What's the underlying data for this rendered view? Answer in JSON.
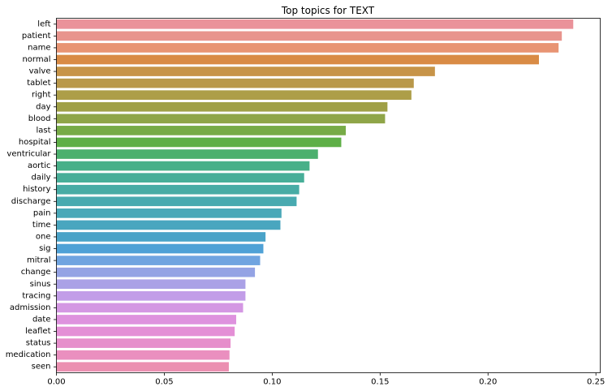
{
  "chart_data": {
    "type": "bar",
    "orientation": "horizontal",
    "title": "Top topics for TEXT",
    "xlabel": "",
    "ylabel": "",
    "xlim": [
      0,
      0.252
    ],
    "x_ticks": [
      0.0,
      0.05,
      0.1,
      0.15,
      0.2,
      0.25
    ],
    "x_tick_labels": [
      "0.00",
      "0.05",
      "0.10",
      "0.15",
      "0.20",
      "0.25"
    ],
    "grid": false,
    "categories": [
      "left",
      "patient",
      "name",
      "normal",
      "valve",
      "tablet",
      "right",
      "day",
      "blood",
      "last",
      "hospital",
      "ventricular",
      "aortic",
      "daily",
      "history",
      "discharge",
      "pain",
      "time",
      "one",
      "sig",
      "mitral",
      "change",
      "sinus",
      "tracing",
      "admission",
      "date",
      "leaflet",
      "status",
      "medication",
      "seen"
    ],
    "values": [
      0.2395,
      0.2342,
      0.2327,
      0.2236,
      0.1754,
      0.1656,
      0.1645,
      0.1534,
      0.1523,
      0.1341,
      0.132,
      0.1212,
      0.1173,
      0.1148,
      0.1125,
      0.1113,
      0.1043,
      0.1038,
      0.0969,
      0.0959,
      0.0944,
      0.092,
      0.0876,
      0.0876,
      0.0865,
      0.0833,
      0.0826,
      0.0807,
      0.0802,
      0.0799
    ],
    "colors": [
      "#ea929a",
      "#e8948d",
      "#e89473",
      "#d98b45",
      "#c79448",
      "#b9984a",
      "#ad9e48",
      "#a0a047",
      "#8fa548",
      "#77ab47",
      "#5eaf47",
      "#4cb06e",
      "#48b089",
      "#47ae98",
      "#47aca5",
      "#48aab0",
      "#49a8b8",
      "#49a6bf",
      "#4aa3c8",
      "#4fa1d6",
      "#70a4e0",
      "#94a3e4",
      "#aaa1e6",
      "#c29de8",
      "#d497e3",
      "#de92de",
      "#e48fd6",
      "#e68ecb",
      "#ea8fbf",
      "#eb90b1"
    ]
  }
}
